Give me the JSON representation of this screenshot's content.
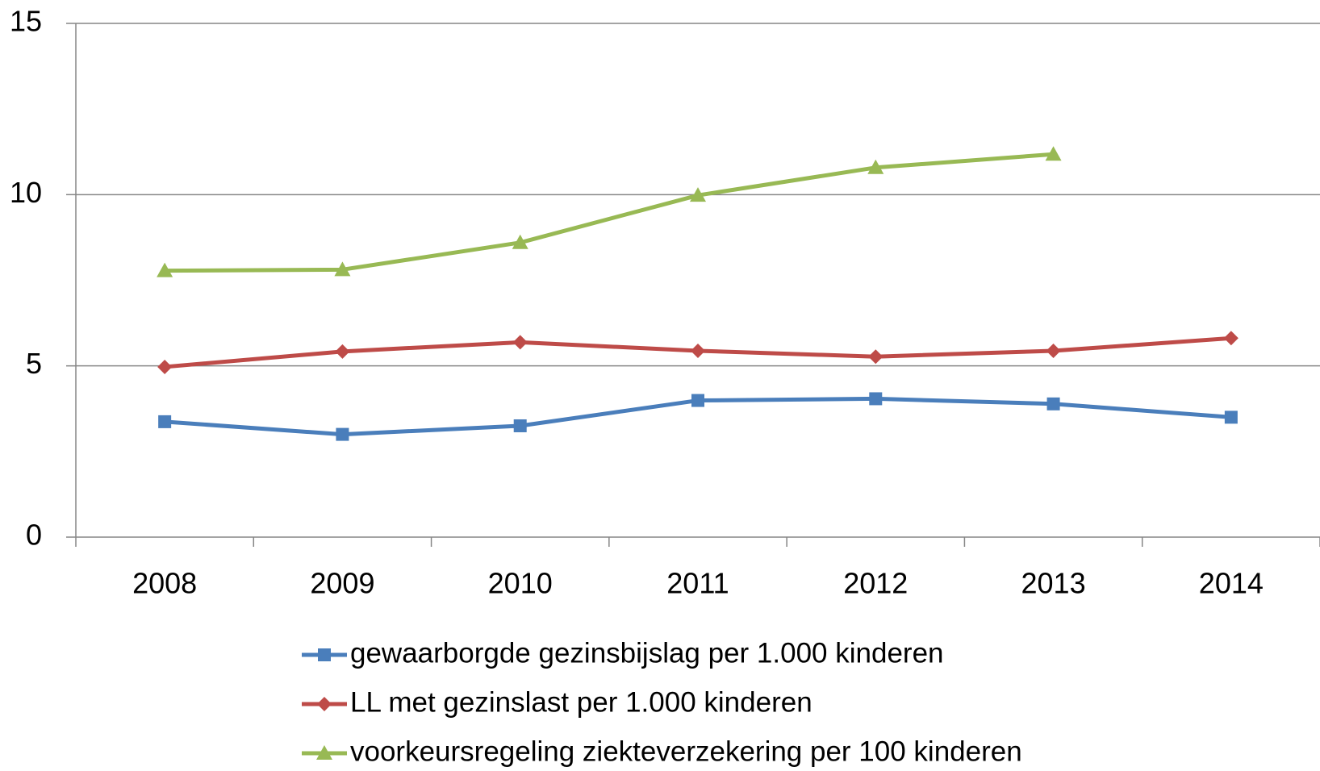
{
  "chart_data": {
    "type": "line",
    "categories": [
      "2008",
      "2009",
      "2010",
      "2011",
      "2012",
      "2013",
      "2014"
    ],
    "series": [
      {
        "name": "gewaarborgde gezinsbijslag per 1.000 kinderen",
        "color": "#4a7ebb",
        "marker": "square",
        "values": [
          3.37,
          3.0,
          3.25,
          3.99,
          4.04,
          3.89,
          3.5
        ]
      },
      {
        "name": "LL met gezinslast per 1.000 kinderen",
        "color": "#be4b48",
        "marker": "diamond",
        "values": [
          4.97,
          5.42,
          5.69,
          5.44,
          5.27,
          5.44,
          5.81
        ]
      },
      {
        "name": "voorkeursregeling ziekteverzekering per 100 kinderen",
        "color": "#98b954",
        "marker": "triangle",
        "values": [
          7.78,
          7.81,
          8.6,
          9.98,
          10.79,
          11.18,
          null
        ]
      }
    ],
    "ylim": [
      0,
      15
    ],
    "yticks": [
      0,
      5,
      10,
      15
    ],
    "grid": true
  }
}
